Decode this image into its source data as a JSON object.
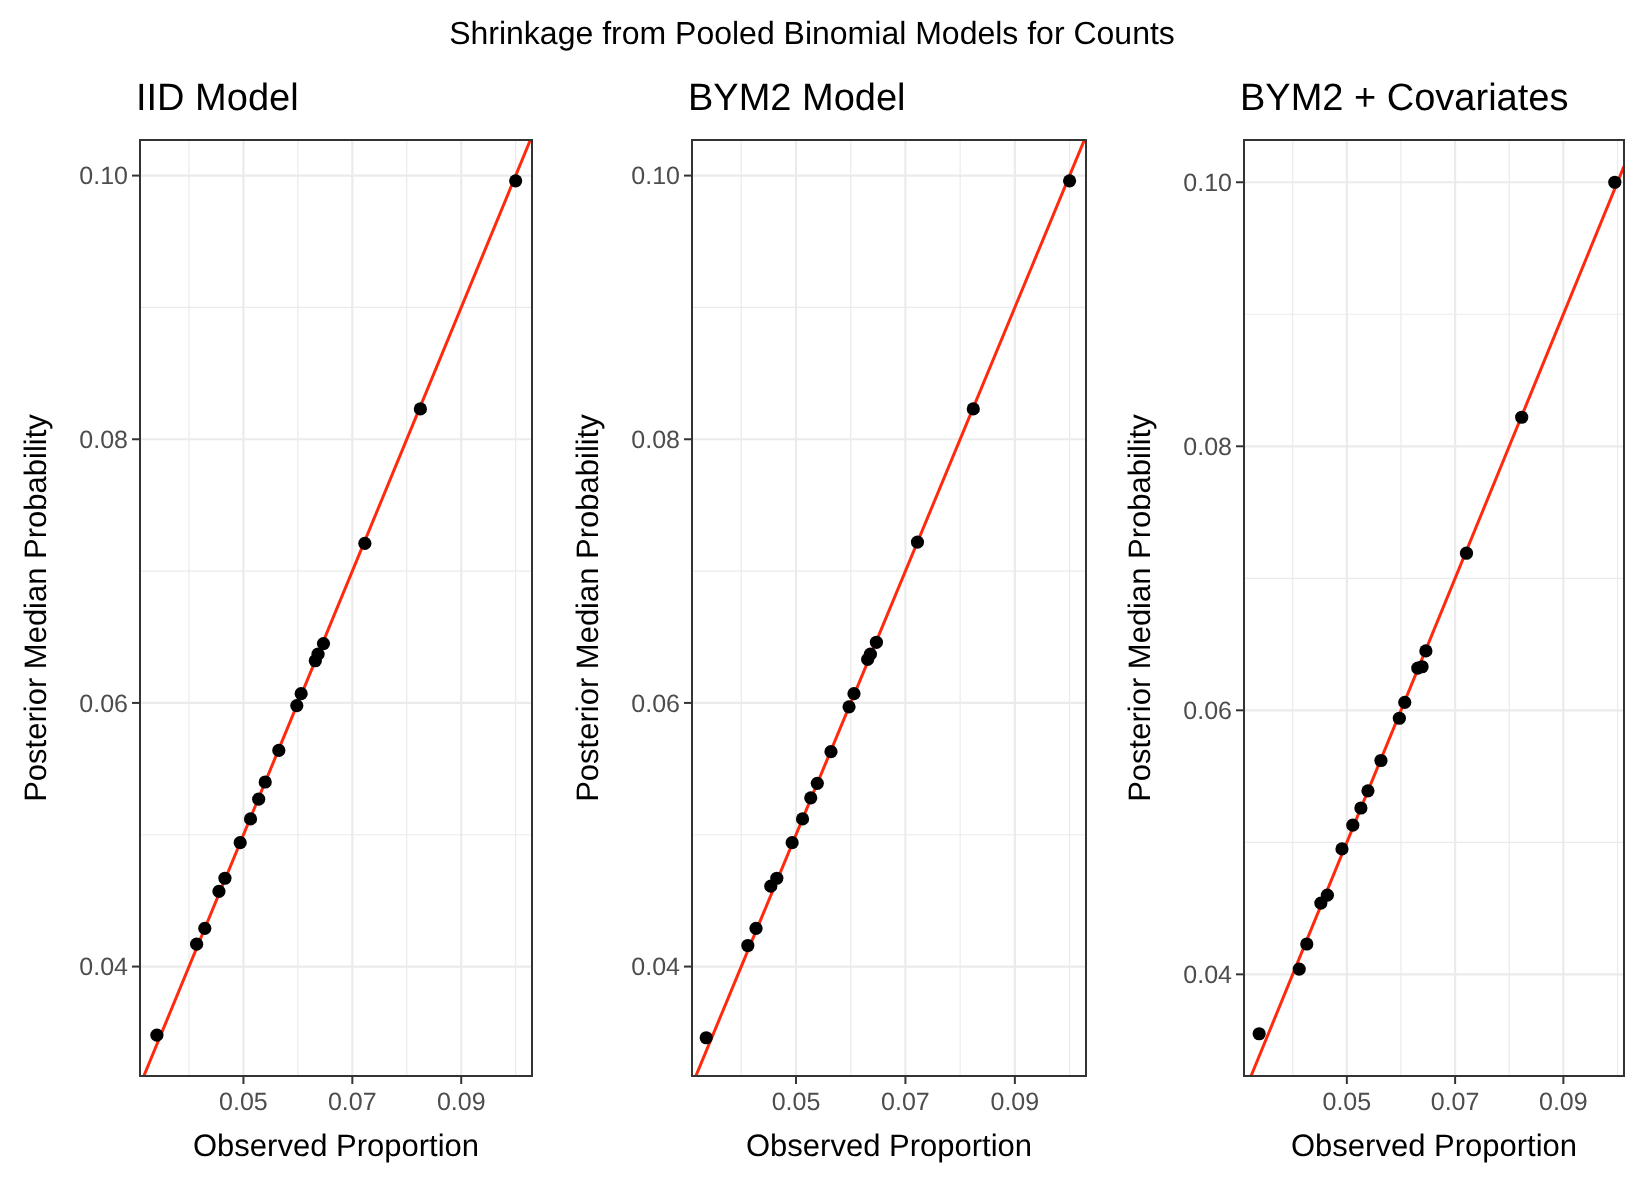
{
  "chart_data": [
    {
      "type": "scatter",
      "title": "IID Model",
      "xlabel": "Observed Proportion",
      "ylabel": "Posterior Median Probability",
      "annotations": [
        "Shrinkage from Pooled Binomial Models for Counts"
      ],
      "xlim": [
        0.031,
        0.103
      ],
      "ylim": [
        0.0317,
        0.1027
      ],
      "xticks": [
        {
          "value": 0.04,
          "label": null
        },
        0.05,
        {
          "value": 0.06,
          "label": null
        },
        0.07,
        {
          "value": 0.08,
          "label": null
        },
        0.09,
        {
          "value": 0.1,
          "label": null
        }
      ],
      "yticks": [
        0.04,
        {
          "value": 0.05,
          "label": null
        },
        0.06,
        {
          "value": 0.07,
          "label": null
        },
        0.08,
        {
          "value": 0.09,
          "label": null
        },
        {
          "value": 0.1,
          "label": "0.10"
        }
      ],
      "grid": true,
      "series": [
        {
          "marker": "circle",
          "color": "#000000",
          "x": [
            0.0341,
            0.0414,
            0.0429,
            0.0455,
            0.0466,
            0.0494,
            0.0513,
            0.0528,
            0.054,
            0.0565,
            0.0598,
            0.0606,
            0.0632,
            0.0637,
            0.0647,
            0.0723,
            0.0825,
            0.1
          ],
          "values": [
            0.0348,
            0.0417,
            0.0429,
            0.0457,
            0.0467,
            0.0494,
            0.0512,
            0.0527,
            0.054,
            0.0564,
            0.0598,
            0.0607,
            0.0632,
            0.0637,
            0.0645,
            0.0721,
            0.0823,
            0.0996
          ]
        },
        {
          "type": "line",
          "color": "#ff2a0e",
          "x": [
            0.0317,
            0.1027
          ],
          "values": [
            0.0317,
            0.1027
          ]
        }
      ]
    },
    {
      "type": "scatter",
      "title": "BYM2 Model",
      "xlabel": "Observed Proportion",
      "ylabel": "Posterior Median Probability",
      "xlim": [
        0.031,
        0.103
      ],
      "ylim": [
        0.0317,
        0.1027
      ],
      "xticks": [
        {
          "value": 0.04,
          "label": null
        },
        0.05,
        {
          "value": 0.06,
          "label": null
        },
        0.07,
        {
          "value": 0.08,
          "label": null
        },
        0.09,
        {
          "value": 0.1,
          "label": null
        }
      ],
      "yticks": [
        0.04,
        {
          "value": 0.05,
          "label": null
        },
        0.06,
        {
          "value": 0.07,
          "label": null
        },
        0.08,
        {
          "value": 0.09,
          "label": null
        },
        {
          "value": 0.1,
          "label": "0.10"
        }
      ],
      "grid": true,
      "series": [
        {
          "marker": "circle",
          "color": "#000000",
          "x": [
            0.0336,
            0.0412,
            0.0427,
            0.0454,
            0.0465,
            0.0493,
            0.0512,
            0.0527,
            0.0539,
            0.0564,
            0.0597,
            0.0606,
            0.0631,
            0.0636,
            0.0647,
            0.0722,
            0.0824,
            0.1
          ],
          "values": [
            0.0346,
            0.0416,
            0.0429,
            0.0461,
            0.0467,
            0.0494,
            0.0512,
            0.0528,
            0.0539,
            0.0563,
            0.0597,
            0.0607,
            0.0633,
            0.0637,
            0.0646,
            0.0722,
            0.0823,
            0.0996
          ]
        },
        {
          "type": "line",
          "color": "#ff2a0e",
          "x": [
            0.0317,
            0.1027
          ],
          "values": [
            0.0317,
            0.1027
          ]
        }
      ]
    },
    {
      "type": "scatter",
      "title": "BYM2 + Covariates",
      "xlabel": "Observed Proportion",
      "ylabel": "Posterior Median Probability",
      "xlim": [
        0.031,
        0.1012
      ],
      "ylim": [
        0.0323,
        0.1032
      ],
      "xticks": [
        {
          "value": 0.04,
          "label": null
        },
        0.05,
        {
          "value": 0.06,
          "label": null
        },
        0.07,
        {
          "value": 0.08,
          "label": null
        },
        0.09,
        {
          "value": 0.1,
          "label": null
        }
      ],
      "yticks": [
        0.04,
        {
          "value": 0.05,
          "label": null
        },
        0.06,
        {
          "value": 0.07,
          "label": null
        },
        0.08,
        {
          "value": 0.09,
          "label": null
        },
        {
          "value": 0.1,
          "label": "0.10"
        }
      ],
      "grid": true,
      "series": [
        {
          "marker": "circle",
          "color": "#000000",
          "x": [
            0.0338,
            0.0412,
            0.0426,
            0.0452,
            0.0464,
            0.0491,
            0.0511,
            0.0526,
            0.0539,
            0.0563,
            0.0597,
            0.0607,
            0.0631,
            0.0639,
            0.0646,
            0.0721,
            0.0823,
            0.0995
          ],
          "values": [
            0.0355,
            0.0404,
            0.0423,
            0.0454,
            0.046,
            0.0495,
            0.0513,
            0.0526,
            0.0539,
            0.0562,
            0.0594,
            0.0606,
            0.0632,
            0.0633,
            0.0645,
            0.0719,
            0.0822,
            0.1
          ]
        },
        {
          "type": "line",
          "color": "#ff2a0e",
          "x": [
            0.0323,
            0.1012
          ],
          "values": [
            0.0323,
            0.1012
          ]
        }
      ]
    }
  ]
}
